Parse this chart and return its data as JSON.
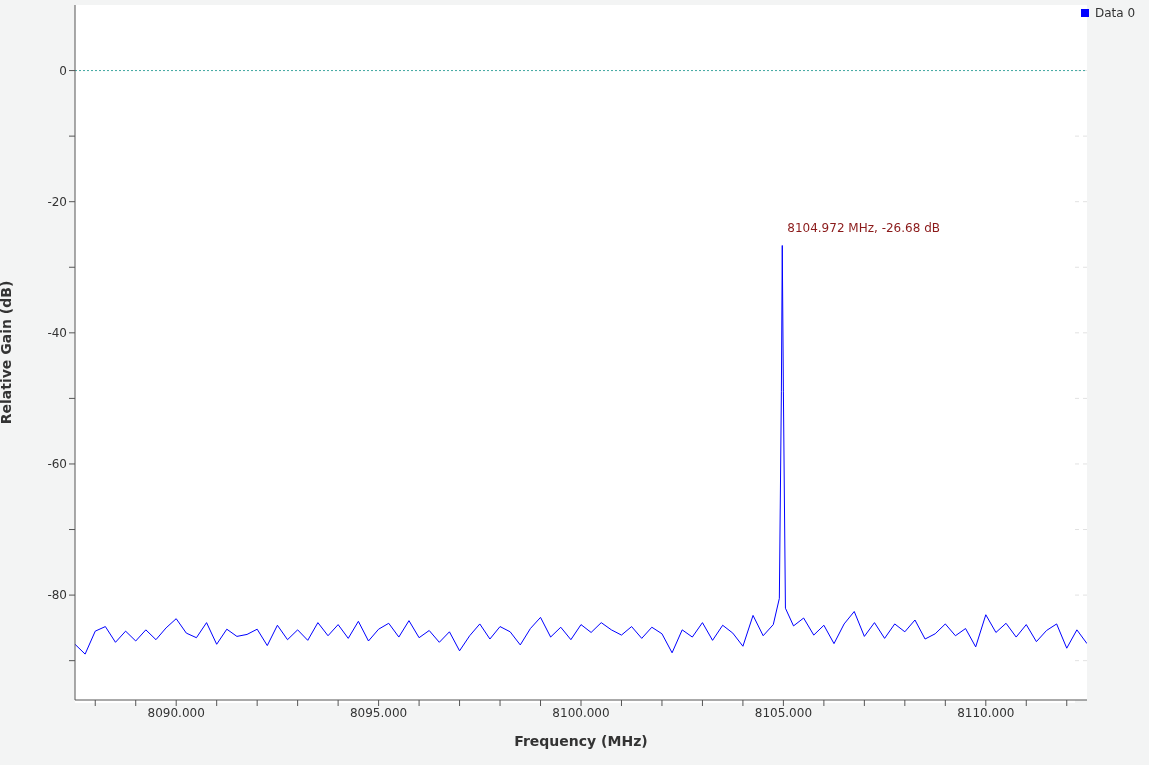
{
  "chart_data": {
    "type": "line",
    "xlabel": "Frequency (MHz)",
    "ylabel": "Relative Gain (dB)",
    "x": [
      8087.5,
      8087.75,
      8088,
      8088.25,
      8088.5,
      8088.75,
      8089,
      8089.25,
      8089.5,
      8089.75,
      8090,
      8090.25,
      8090.5,
      8090.75,
      8091,
      8091.25,
      8091.5,
      8091.75,
      8092,
      8092.25,
      8092.5,
      8092.75,
      8093,
      8093.25,
      8093.5,
      8093.75,
      8094,
      8094.25,
      8094.5,
      8094.75,
      8095,
      8095.25,
      8095.5,
      8095.75,
      8096,
      8096.25,
      8096.5,
      8096.75,
      8097,
      8097.25,
      8097.5,
      8097.75,
      8098,
      8098.25,
      8098.5,
      8098.75,
      8099,
      8099.25,
      8099.5,
      8099.75,
      8100,
      8100.25,
      8100.5,
      8100.75,
      8101,
      8101.25,
      8101.5,
      8101.75,
      8102,
      8102.25,
      8102.5,
      8102.75,
      8103,
      8103.25,
      8103.5,
      8103.75,
      8104,
      8104.25,
      8104.5,
      8104.75,
      8104.9,
      8104.95,
      8104.972,
      8105,
      8105.05,
      8105.25,
      8105.5,
      8105.75,
      8106,
      8106.25,
      8106.5,
      8106.75,
      8107,
      8107.25,
      8107.5,
      8107.75,
      8108,
      8108.25,
      8108.5,
      8108.75,
      8109,
      8109.25,
      8109.5,
      8109.75,
      8110,
      8110.25,
      8110.5,
      8110.75,
      8111,
      8111.25,
      8111.5,
      8111.75,
      8112,
      8112.25,
      8112.5
    ],
    "series": [
      {
        "name": "Data 0",
        "color": "#0000ff",
        "values": [
          -87.5,
          -89,
          -85.5,
          -84.8,
          -87.2,
          -85.5,
          -87,
          -85.3,
          -86.8,
          -85,
          -83.6,
          -85.8,
          -86.5,
          -84.2,
          -87.5,
          -85.2,
          -86.3,
          -86,
          -85.2,
          -87.7,
          -84.6,
          -86.8,
          -85.3,
          -86.9,
          -84.2,
          -86.2,
          -84.5,
          -86.6,
          -84,
          -87,
          -85.2,
          -84.3,
          -86.4,
          -83.9,
          -86.5,
          -85.4,
          -87.2,
          -85.6,
          -88.5,
          -86.2,
          -84.4,
          -86.7,
          -84.8,
          -85.6,
          -87.6,
          -85.1,
          -83.4,
          -86.4,
          -84.9,
          -86.8,
          -84.5,
          -85.7,
          -84.2,
          -85.3,
          -86.1,
          -84.8,
          -86.6,
          -84.9,
          -85.9,
          -88.8,
          -85.3,
          -86.4,
          -84.2,
          -86.9,
          -84.6,
          -85.8,
          -87.8,
          -83.1,
          -86.2,
          -84.5,
          -80.5,
          -49,
          -26.68,
          -49,
          -82,
          -84.7,
          -83.5,
          -86.1,
          -84.6,
          -87.4,
          -84.4,
          -82.5,
          -86.3,
          -84.2,
          -86.6,
          -84.4,
          -85.6,
          -83.8,
          -86.7,
          -85.9,
          -84.4,
          -86.2,
          -85.1,
          -87.9,
          -83,
          -85.7,
          -84.3,
          -86.4,
          -84.5,
          -87.1,
          -85.4,
          -84.4,
          -88.1,
          -85.3,
          -87.4
        ]
      }
    ],
    "xlim": [
      8087.5,
      8112.5
    ],
    "xticks": [
      {
        "value": 8088,
        "label": null
      },
      {
        "value": 8089,
        "label": null
      },
      {
        "value": 8090,
        "label": "8090.000"
      },
      {
        "value": 8091,
        "label": null
      },
      {
        "value": 8092,
        "label": null
      },
      {
        "value": 8093,
        "label": null
      },
      {
        "value": 8094,
        "label": null
      },
      {
        "value": 8095,
        "label": "8095.000"
      },
      {
        "value": 8096,
        "label": null
      },
      {
        "value": 8097,
        "label": null
      },
      {
        "value": 8098,
        "label": null
      },
      {
        "value": 8099,
        "label": null
      },
      {
        "value": 8100,
        "label": "8100.000"
      },
      {
        "value": 8101,
        "label": null
      },
      {
        "value": 8102,
        "label": null
      },
      {
        "value": 8103,
        "label": null
      },
      {
        "value": 8104,
        "label": null
      },
      {
        "value": 8105,
        "label": "8105.000"
      },
      {
        "value": 8106,
        "label": null
      },
      {
        "value": 8107,
        "label": null
      },
      {
        "value": 8108,
        "label": null
      },
      {
        "value": 8109,
        "label": null
      },
      {
        "value": 8110,
        "label": "8110.000"
      },
      {
        "value": 8111,
        "label": null
      },
      {
        "value": 8112,
        "label": null
      }
    ],
    "ylim": [
      -96,
      10
    ],
    "yticks": [
      {
        "value": -90,
        "label": null
      },
      -80,
      {
        "value": -70,
        "label": null
      },
      -60,
      {
        "value": -50,
        "label": null
      },
      -40,
      {
        "value": -30,
        "label": null
      },
      -20,
      {
        "value": -10,
        "label": null
      },
      0
    ],
    "grid": true,
    "legend": "top right",
    "marker": "none",
    "line_style": "solid",
    "ref_lines": [
      {
        "axis": "y",
        "value": 0,
        "color": "#3fa7a0",
        "line_style": "dotted"
      }
    ],
    "annotations": [
      {
        "text": "8104.972 MHz, -26.68 dB",
        "x": 8104.972,
        "y": -26.68
      }
    ]
  }
}
